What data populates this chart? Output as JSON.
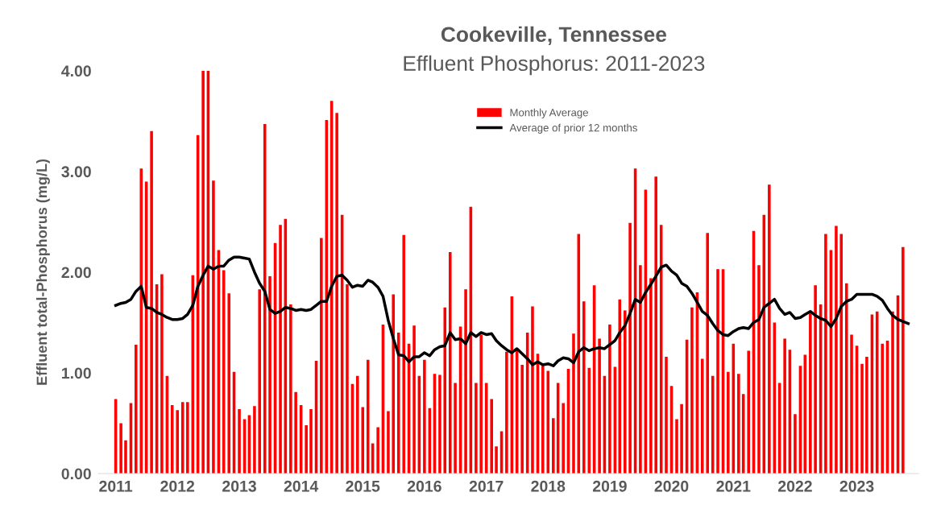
{
  "chart_data": {
    "type": "bar",
    "title": "Cookeville, Tennessee",
    "subtitle": "Effluent Phosphorus: 2011-2023",
    "ylabel": "Effluent total-Phosphorus (mg/L)",
    "x": [
      "2011-01",
      "2011-02",
      "2011-03",
      "2011-04",
      "2011-05",
      "2011-06",
      "2011-07",
      "2011-08",
      "2011-09",
      "2011-10",
      "2011-11",
      "2011-12",
      "2012-01",
      "2012-02",
      "2012-03",
      "2012-04",
      "2012-05",
      "2012-06",
      "2012-07",
      "2012-08",
      "2012-09",
      "2012-10",
      "2012-11",
      "2012-12",
      "2013-01",
      "2013-02",
      "2013-03",
      "2013-04",
      "2013-05",
      "2013-06",
      "2013-07",
      "2013-08",
      "2013-09",
      "2013-10",
      "2013-11",
      "2013-12",
      "2014-01",
      "2014-02",
      "2014-03",
      "2014-04",
      "2014-05",
      "2014-06",
      "2014-07",
      "2014-08",
      "2014-09",
      "2014-10",
      "2014-11",
      "2014-12",
      "2015-01",
      "2015-02",
      "2015-03",
      "2015-04",
      "2015-05",
      "2015-06",
      "2015-07",
      "2015-08",
      "2015-09",
      "2015-10",
      "2015-11",
      "2015-12",
      "2016-01",
      "2016-02",
      "2016-03",
      "2016-04",
      "2016-05",
      "2016-06",
      "2016-07",
      "2016-08",
      "2016-09",
      "2016-10",
      "2016-11",
      "2016-12",
      "2017-01",
      "2017-02",
      "2017-03",
      "2017-04",
      "2017-05",
      "2017-06",
      "2017-07",
      "2017-08",
      "2017-09",
      "2017-10",
      "2017-11",
      "2017-12",
      "2018-01",
      "2018-02",
      "2018-03",
      "2018-04",
      "2018-05",
      "2018-06",
      "2018-07",
      "2018-08",
      "2018-09",
      "2018-10",
      "2018-11",
      "2018-12",
      "2019-01",
      "2019-02",
      "2019-03",
      "2019-04",
      "2019-05",
      "2019-06",
      "2019-07",
      "2019-08",
      "2019-09",
      "2019-10",
      "2019-11",
      "2019-12",
      "2020-01",
      "2020-02",
      "2020-03",
      "2020-04",
      "2020-05",
      "2020-06",
      "2020-07",
      "2020-08",
      "2020-09",
      "2020-10",
      "2020-11",
      "2020-12",
      "2021-01",
      "2021-02",
      "2021-03",
      "2021-04",
      "2021-05",
      "2021-06",
      "2021-07",
      "2021-08",
      "2021-09",
      "2021-10",
      "2021-11",
      "2021-12",
      "2022-01",
      "2022-02",
      "2022-03",
      "2022-04",
      "2022-05",
      "2022-06",
      "2022-07",
      "2022-08",
      "2022-09",
      "2022-10",
      "2022-11",
      "2022-12",
      "2023-01",
      "2023-02",
      "2023-03",
      "2023-04",
      "2023-05",
      "2023-06",
      "2023-07",
      "2023-08",
      "2023-09",
      "2023-10",
      "2023-11"
    ],
    "xlim": [
      "2010-09-20",
      "2024-01-01"
    ],
    "xticks": [
      "2011",
      "2012",
      "2013",
      "2014",
      "2015",
      "2016",
      "2017",
      "2018",
      "2019",
      "2020",
      "2021",
      "2022",
      "2023"
    ],
    "ylim": [
      0,
      4.0
    ],
    "yticks": [
      {
        "value": 0,
        "label": "0.00"
      },
      {
        "value": 1,
        "label": "1.00"
      },
      {
        "value": 2,
        "label": "2.00"
      },
      {
        "value": 3,
        "label": "3.00"
      },
      {
        "value": 4,
        "label": "4.00"
      }
    ],
    "grid": false,
    "legend": "top",
    "series": [
      {
        "name": "Monthly Average",
        "color": "#ff0000",
        "values": [
          0.74,
          0.5,
          0.33,
          0.7,
          1.28,
          3.03,
          2.9,
          3.4,
          1.88,
          1.98,
          0.97,
          0.68,
          0.63,
          0.71,
          0.71,
          1.97,
          3.36,
          4.0,
          4.0,
          2.91,
          2.22,
          2.02,
          1.79,
          1.01,
          0.64,
          0.54,
          0.58,
          0.67,
          1.83,
          3.47,
          1.96,
          2.29,
          2.47,
          2.53,
          1.68,
          0.81,
          0.68,
          0.48,
          0.64,
          1.12,
          2.34,
          3.51,
          3.7,
          3.58,
          2.57,
          1.88,
          0.89,
          0.97,
          0.66,
          1.13,
          0.3,
          0.46,
          1.48,
          0.62,
          1.78,
          1.4,
          2.37,
          1.29,
          1.47,
          0.97,
          1.13,
          0.65,
          0.99,
          0.98,
          1.65,
          2.2,
          0.9,
          1.46,
          1.83,
          2.65,
          0.9,
          1.38,
          0.9,
          0.74,
          0.27,
          0.42,
          1.21,
          1.76,
          1.24,
          1.08,
          1.4,
          1.66,
          1.19,
          1.07,
          1.02,
          0.55,
          0.9,
          0.7,
          1.04,
          1.39,
          2.38,
          1.71,
          1.05,
          1.87,
          1.34,
          0.97,
          1.48,
          1.06,
          1.73,
          1.62,
          2.49,
          3.03,
          2.07,
          2.82,
          1.94,
          2.95,
          2.47,
          1.16,
          0.87,
          0.54,
          0.69,
          1.33,
          1.65,
          1.8,
          1.14,
          2.39,
          0.97,
          2.03,
          2.03,
          1.01,
          1.29,
          0.99,
          0.79,
          1.22,
          2.41,
          2.07,
          2.57,
          2.87,
          1.5,
          0.9,
          1.34,
          1.23,
          0.59,
          1.07,
          1.18,
          1.59,
          1.87,
          1.68,
          2.38,
          2.22,
          2.46,
          2.38,
          1.89,
          1.38,
          1.27,
          1.09,
          1.16,
          1.58,
          1.61,
          1.29,
          1.32,
          1.61,
          1.77,
          2.25,
          null
        ]
      },
      {
        "name": "Average of prior 12 months",
        "type": "line",
        "color": "#000000",
        "values": [
          1.67,
          1.69,
          1.7,
          1.73,
          1.81,
          1.86,
          1.65,
          1.64,
          1.6,
          1.58,
          1.55,
          1.53,
          1.53,
          1.54,
          1.58,
          1.67,
          1.86,
          1.97,
          2.06,
          2.03,
          2.06,
          2.06,
          2.12,
          2.15,
          2.15,
          2.14,
          2.13,
          2.0,
          1.89,
          1.81,
          1.63,
          1.59,
          1.61,
          1.65,
          1.64,
          1.62,
          1.63,
          1.62,
          1.63,
          1.67,
          1.71,
          1.71,
          1.86,
          1.96,
          1.97,
          1.92,
          1.85,
          1.87,
          1.86,
          1.92,
          1.9,
          1.85,
          1.76,
          1.52,
          1.34,
          1.18,
          1.17,
          1.11,
          1.16,
          1.16,
          1.2,
          1.17,
          1.23,
          1.26,
          1.27,
          1.4,
          1.33,
          1.34,
          1.29,
          1.4,
          1.36,
          1.4,
          1.38,
          1.39,
          1.32,
          1.27,
          1.23,
          1.2,
          1.24,
          1.19,
          1.14,
          1.08,
          1.11,
          1.08,
          1.09,
          1.07,
          1.12,
          1.15,
          1.14,
          1.1,
          1.21,
          1.25,
          1.22,
          1.24,
          1.25,
          1.24,
          1.28,
          1.32,
          1.4,
          1.47,
          1.59,
          1.73,
          1.7,
          1.8,
          1.88,
          1.96,
          2.05,
          2.07,
          2.01,
          1.97,
          1.89,
          1.86,
          1.79,
          1.7,
          1.61,
          1.57,
          1.49,
          1.42,
          1.38,
          1.37,
          1.41,
          1.44,
          1.45,
          1.44,
          1.5,
          1.53,
          1.65,
          1.69,
          1.73,
          1.64,
          1.58,
          1.6,
          1.54,
          1.55,
          1.58,
          1.61,
          1.57,
          1.54,
          1.52,
          1.46,
          1.54,
          1.66,
          1.71,
          1.73,
          1.78,
          1.78,
          1.78,
          1.78,
          1.76,
          1.72,
          1.64,
          1.57,
          1.53,
          1.51,
          1.49
        ]
      }
    ]
  }
}
